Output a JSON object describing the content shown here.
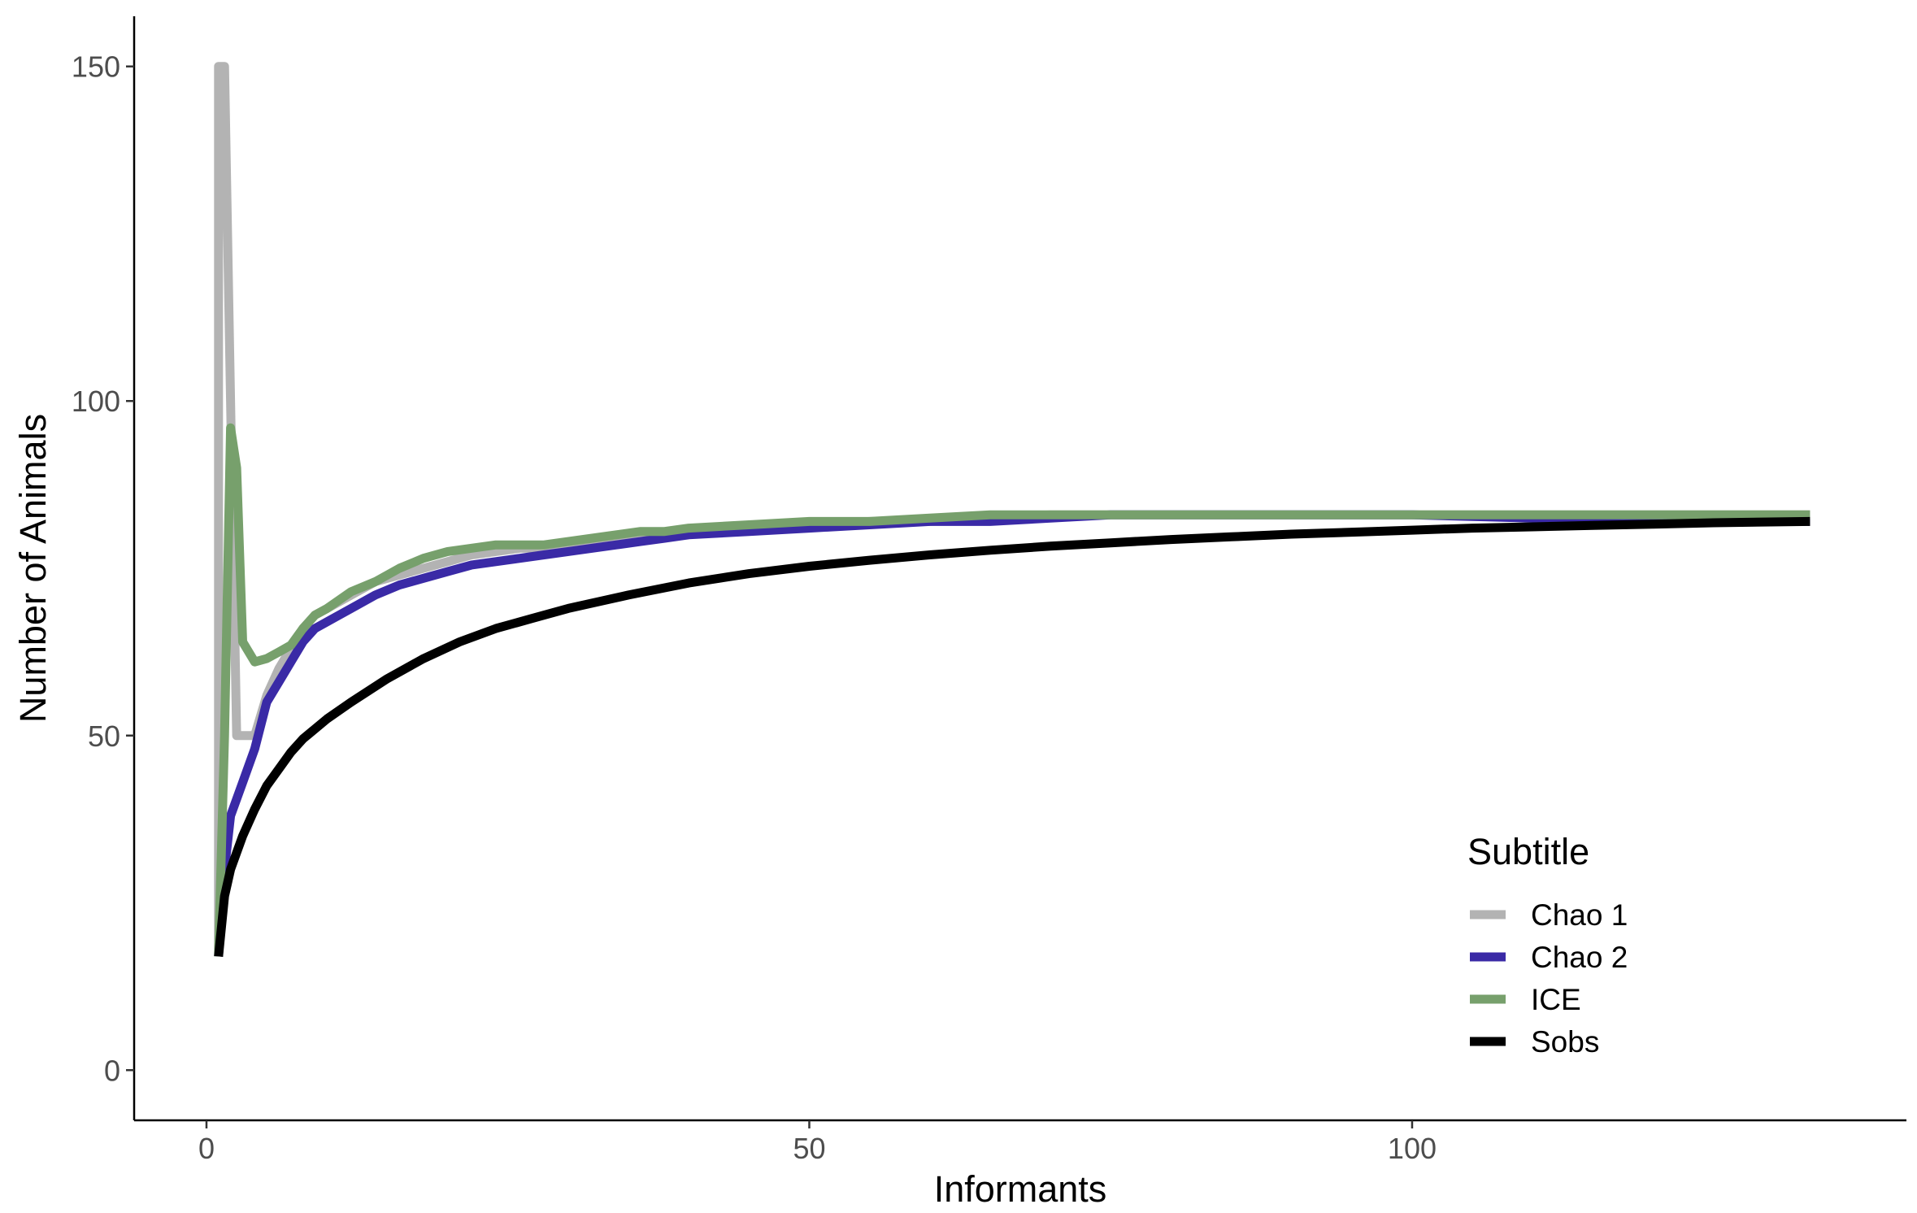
{
  "chart_data": {
    "type": "line",
    "title": "",
    "xlabel": "Informants",
    "ylabel": "Number of Animals",
    "xlim": [
      -6,
      141
    ],
    "ylim": [
      -7.5,
      157.5
    ],
    "x_ticks": [
      0,
      50,
      100
    ],
    "x_tick_labels": [
      "0",
      "50",
      "100"
    ],
    "y_ticks": [
      0,
      50,
      100,
      150
    ],
    "y_tick_labels": [
      "0",
      "50",
      "100",
      "150"
    ],
    "grid": false,
    "legend": {
      "title": "Subtitle",
      "position": "bottom-right-inside",
      "entries": [
        "Chao 1",
        "Chao 2",
        "ICE",
        "Sobs"
      ]
    },
    "series": [
      {
        "name": "Chao 1",
        "color": "#b3b3b3",
        "points": [
          [
            1,
            17
          ],
          [
            1,
            150
          ],
          [
            1.5,
            150
          ],
          [
            2,
            100
          ],
          [
            2.5,
            50
          ],
          [
            3,
            50
          ],
          [
            4,
            50
          ],
          [
            5,
            56
          ],
          [
            6,
            60
          ],
          [
            7,
            63
          ],
          [
            8,
            66
          ],
          [
            9,
            68
          ],
          [
            10,
            69
          ],
          [
            12,
            71
          ],
          [
            14,
            73
          ],
          [
            16,
            74
          ],
          [
            18,
            75
          ],
          [
            20,
            76
          ],
          [
            22,
            77
          ],
          [
            24,
            77.5
          ],
          [
            26,
            78
          ],
          [
            28,
            78
          ],
          [
            30,
            78.5
          ],
          [
            32,
            79
          ],
          [
            34,
            79.5
          ],
          [
            36,
            80
          ],
          [
            38,
            80
          ],
          [
            40,
            80.5
          ],
          [
            45,
            81
          ],
          [
            50,
            81.5
          ],
          [
            55,
            82
          ],
          [
            60,
            82
          ],
          [
            65,
            82.5
          ],
          [
            70,
            83
          ],
          [
            75,
            83
          ],
          [
            80,
            83
          ],
          [
            90,
            83
          ],
          [
            100,
            83
          ],
          [
            110,
            83
          ],
          [
            120,
            83
          ],
          [
            133,
            83
          ]
        ]
      },
      {
        "name": "Chao 2",
        "color": "#3a2aa6",
        "points": [
          [
            1,
            17
          ],
          [
            1.5,
            30
          ],
          [
            2,
            38
          ],
          [
            3,
            43
          ],
          [
            4,
            48
          ],
          [
            5,
            55
          ],
          [
            6,
            58
          ],
          [
            7,
            61
          ],
          [
            8,
            64
          ],
          [
            9,
            66
          ],
          [
            10,
            67
          ],
          [
            12,
            69
          ],
          [
            14,
            71
          ],
          [
            16,
            72.5
          ],
          [
            18,
            73.5
          ],
          [
            20,
            74.5
          ],
          [
            22,
            75.5
          ],
          [
            24,
            76
          ],
          [
            26,
            76.5
          ],
          [
            28,
            77
          ],
          [
            30,
            77.5
          ],
          [
            32,
            78
          ],
          [
            34,
            78.5
          ],
          [
            36,
            79
          ],
          [
            38,
            79.5
          ],
          [
            40,
            80
          ],
          [
            45,
            80.5
          ],
          [
            50,
            81
          ],
          [
            55,
            81.5
          ],
          [
            60,
            82
          ],
          [
            65,
            82
          ],
          [
            70,
            82.5
          ],
          [
            75,
            83
          ],
          [
            80,
            83
          ],
          [
            90,
            83
          ],
          [
            100,
            83
          ],
          [
            110,
            82.5
          ],
          [
            120,
            82.5
          ],
          [
            133,
            82
          ]
        ]
      },
      {
        "name": "ICE",
        "color": "#77a06c",
        "points": [
          [
            1,
            17
          ],
          [
            1.5,
            50
          ],
          [
            2,
            96
          ],
          [
            2.5,
            90
          ],
          [
            3,
            64
          ],
          [
            4,
            61
          ],
          [
            5,
            61.5
          ],
          [
            6,
            62.5
          ],
          [
            7,
            63.5
          ],
          [
            8,
            66
          ],
          [
            9,
            68
          ],
          [
            10,
            69
          ],
          [
            12,
            71.5
          ],
          [
            14,
            73
          ],
          [
            16,
            75
          ],
          [
            18,
            76.5
          ],
          [
            20,
            77.5
          ],
          [
            22,
            78
          ],
          [
            24,
            78.5
          ],
          [
            26,
            78.5
          ],
          [
            28,
            78.5
          ],
          [
            30,
            79
          ],
          [
            32,
            79.5
          ],
          [
            34,
            80
          ],
          [
            36,
            80.5
          ],
          [
            38,
            80.5
          ],
          [
            40,
            81
          ],
          [
            45,
            81.5
          ],
          [
            50,
            82
          ],
          [
            55,
            82
          ],
          [
            60,
            82.5
          ],
          [
            65,
            83
          ],
          [
            70,
            83
          ],
          [
            75,
            83
          ],
          [
            80,
            83
          ],
          [
            90,
            83
          ],
          [
            100,
            83
          ],
          [
            110,
            83
          ],
          [
            120,
            83
          ],
          [
            133,
            83
          ]
        ]
      },
      {
        "name": "Sobs",
        "color": "#000000",
        "points": [
          [
            1,
            17
          ],
          [
            1.5,
            26
          ],
          [
            2,
            30
          ],
          [
            3,
            35
          ],
          [
            4,
            39
          ],
          [
            5,
            42.5
          ],
          [
            6,
            45
          ],
          [
            7,
            47.5
          ],
          [
            8,
            49.5
          ],
          [
            10,
            52.5
          ],
          [
            12,
            55
          ],
          [
            15,
            58.5
          ],
          [
            18,
            61.5
          ],
          [
            21,
            64
          ],
          [
            24,
            66
          ],
          [
            27,
            67.5
          ],
          [
            30,
            69
          ],
          [
            35,
            71
          ],
          [
            40,
            72.8
          ],
          [
            45,
            74.2
          ],
          [
            50,
            75.3
          ],
          [
            55,
            76.2
          ],
          [
            60,
            77
          ],
          [
            65,
            77.7
          ],
          [
            70,
            78.3
          ],
          [
            75,
            78.8
          ],
          [
            80,
            79.3
          ],
          [
            85,
            79.7
          ],
          [
            90,
            80.1
          ],
          [
            95,
            80.4
          ],
          [
            100,
            80.7
          ],
          [
            105,
            81
          ],
          [
            110,
            81.2
          ],
          [
            115,
            81.4
          ],
          [
            120,
            81.6
          ],
          [
            125,
            81.8
          ],
          [
            133,
            82
          ]
        ]
      }
    ]
  }
}
